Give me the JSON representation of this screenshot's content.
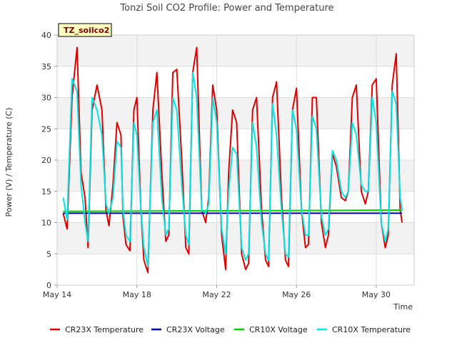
{
  "chart_data": {
    "type": "line",
    "title": "Tonzi Soil CO2 Profile: Power and Temperature",
    "site_label": "TZ_soilco2",
    "xlabel": "Time",
    "ylabel": "Power (V) / Temperature (C)",
    "xlim": [
      14,
      31.9
    ],
    "ylim": [
      0,
      40
    ],
    "x_ticks": [
      {
        "value": 14,
        "label": "May 14"
      },
      {
        "value": 18,
        "label": "May 18"
      },
      {
        "value": 22,
        "label": "May 22"
      },
      {
        "value": 26,
        "label": "May 26"
      },
      {
        "value": 30,
        "label": "May 30"
      }
    ],
    "y_ticks": [
      0,
      5,
      10,
      15,
      20,
      25,
      30,
      35,
      40
    ],
    "grid": true,
    "legend_position": "bottom",
    "series": [
      {
        "name": "CR23X Temperature",
        "color": "#e00000",
        "x": [
          14.3,
          14.5,
          14.75,
          15.0,
          15.2,
          15.4,
          15.55,
          15.75,
          16.0,
          16.25,
          16.45,
          16.6,
          16.8,
          17.0,
          17.2,
          17.3,
          17.45,
          17.65,
          17.85,
          18.0,
          18.2,
          18.35,
          18.55,
          18.8,
          19.0,
          19.25,
          19.45,
          19.6,
          19.8,
          20.0,
          20.25,
          20.45,
          20.6,
          20.8,
          21.0,
          21.25,
          21.45,
          21.6,
          21.8,
          22.0,
          22.25,
          22.45,
          22.6,
          22.8,
          23.0,
          23.25,
          23.45,
          23.6,
          23.8,
          24.0,
          24.25,
          24.45,
          24.6,
          24.8,
          25.0,
          25.25,
          25.45,
          25.6,
          25.8,
          26.0,
          26.25,
          26.45,
          26.6,
          26.8,
          27.0,
          27.25,
          27.45,
          27.6,
          27.8,
          28.0,
          28.25,
          28.45,
          28.6,
          28.8,
          29.0,
          29.25,
          29.45,
          29.6,
          29.8,
          30.0,
          30.25,
          30.45,
          30.6,
          30.8,
          31.0,
          31.2,
          31.3
        ],
        "y": [
          11.5,
          9.0,
          30.0,
          38.0,
          18.0,
          14.0,
          6.0,
          28.0,
          32.0,
          28.0,
          12.0,
          9.5,
          16.0,
          26.0,
          24.0,
          11.0,
          6.5,
          5.5,
          28.0,
          30.0,
          12.0,
          4.0,
          2.0,
          28.0,
          34.0,
          18.0,
          7.0,
          8.0,
          34.0,
          34.5,
          20.0,
          6.0,
          5.0,
          34.0,
          38.0,
          12.0,
          10.0,
          14.0,
          32.0,
          28.0,
          8.0,
          2.5,
          18.0,
          28.0,
          26.0,
          5.0,
          2.5,
          3.5,
          28.0,
          30.0,
          12.0,
          4.0,
          3.0,
          30.0,
          32.5,
          14.0,
          4.0,
          3.0,
          28.0,
          31.5,
          12.0,
          6.0,
          6.5,
          30.0,
          30.0,
          10.0,
          6.0,
          8.0,
          21.0,
          19.0,
          14.0,
          13.5,
          15.0,
          30.0,
          32.0,
          15.0,
          13.0,
          15.0,
          32.0,
          33.0,
          10.0,
          6.0,
          8.0,
          32.0,
          37.0,
          12.0,
          10.0
        ]
      },
      {
        "name": "CR23X Voltage",
        "color": "#0000aa",
        "x": [
          14.3,
          31.3
        ],
        "y": [
          11.5,
          11.5
        ]
      },
      {
        "name": "CR10X Voltage",
        "color": "#00cc00",
        "x": [
          14.3,
          31.3
        ],
        "y": [
          11.8,
          12.0
        ]
      },
      {
        "name": "CR10X Temperature",
        "color": "#00e5e5",
        "x": [
          14.3,
          14.5,
          14.75,
          15.0,
          15.2,
          15.4,
          15.55,
          15.75,
          16.0,
          16.25,
          16.45,
          16.6,
          16.8,
          17.0,
          17.2,
          17.3,
          17.45,
          17.65,
          17.85,
          18.0,
          18.2,
          18.35,
          18.55,
          18.8,
          19.0,
          19.25,
          19.45,
          19.6,
          19.8,
          20.0,
          20.25,
          20.45,
          20.6,
          20.8,
          21.0,
          21.25,
          21.45,
          21.6,
          21.8,
          22.0,
          22.25,
          22.45,
          22.6,
          22.8,
          23.0,
          23.25,
          23.45,
          23.6,
          23.8,
          24.0,
          24.25,
          24.45,
          24.6,
          24.8,
          25.0,
          25.25,
          25.45,
          25.6,
          25.8,
          26.0,
          26.25,
          26.45,
          26.6,
          26.8,
          27.0,
          27.25,
          27.45,
          27.6,
          27.8,
          28.0,
          28.25,
          28.45,
          28.6,
          28.8,
          29.0,
          29.25,
          29.45,
          29.6,
          29.8,
          30.0,
          30.25,
          30.45,
          30.6,
          30.8,
          31.0,
          31.2,
          31.3
        ],
        "y": [
          14.0,
          10.5,
          33.0,
          31.0,
          16.0,
          10.0,
          7.0,
          30.0,
          28.0,
          24.0,
          13.0,
          11.5,
          14.0,
          23.0,
          22.0,
          12.0,
          8.0,
          7.0,
          26.0,
          24.0,
          12.0,
          6.0,
          3.0,
          26.0,
          28.0,
          14.0,
          8.0,
          9.0,
          30.0,
          28.0,
          16.0,
          8.0,
          6.5,
          34.0,
          30.0,
          12.0,
          11.5,
          13.0,
          30.0,
          26.0,
          9.0,
          5.0,
          15.0,
          22.0,
          21.0,
          6.0,
          4.0,
          5.0,
          26.0,
          22.0,
          10.0,
          5.0,
          4.0,
          29.0,
          24.0,
          12.0,
          5.0,
          4.5,
          28.0,
          25.0,
          12.0,
          8.0,
          8.0,
          27.0,
          25.0,
          11.0,
          8.0,
          9.0,
          21.5,
          20.0,
          15.0,
          14.0,
          15.0,
          26.0,
          24.0,
          16.0,
          15.0,
          15.0,
          30.0,
          26.0,
          10.0,
          7.0,
          9.0,
          31.0,
          29.0,
          14.0,
          12.0
        ]
      }
    ]
  }
}
